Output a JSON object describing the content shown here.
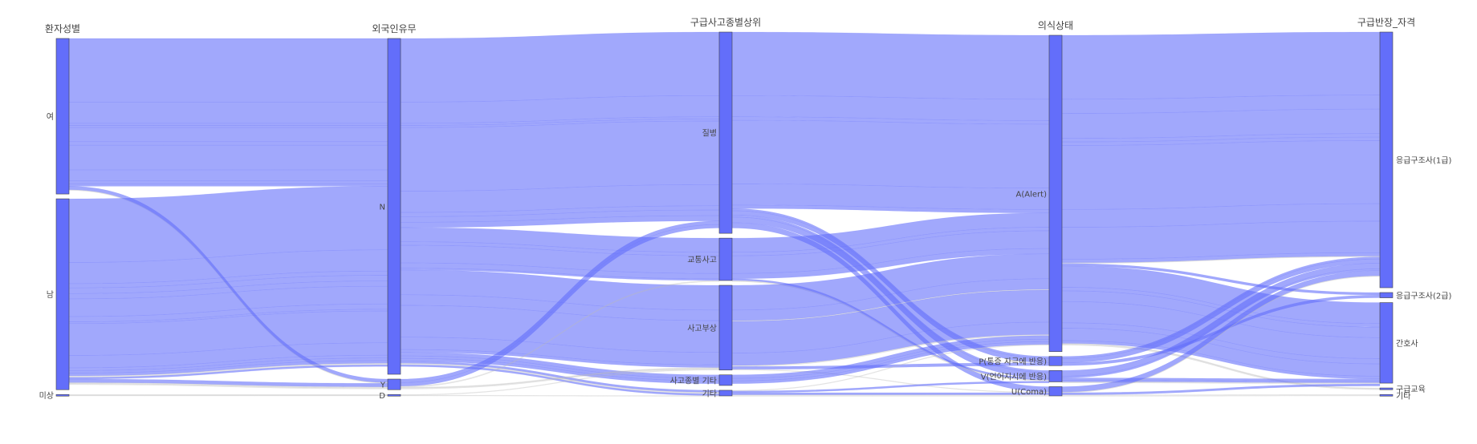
{
  "chart_data": {
    "type": "parallel_categories",
    "bar_color": "#636efa",
    "ribbon_color": "#636efa",
    "ribbon_minor_color": "#bbbbbb",
    "dimensions": [
      {
        "title": "환자성별",
        "categories": [
          {
            "label": "여",
            "count": 44
          },
          {
            "label": "남",
            "count": 54
          },
          {
            "label": "미상",
            "count": 0.4
          }
        ]
      },
      {
        "title": "외국인유무",
        "categories": [
          {
            "label": "N",
            "count": 95
          },
          {
            "label": "Y",
            "count": 3
          },
          {
            "label": "D",
            "count": 0.4
          }
        ]
      },
      {
        "title": "구급사고종별상위",
        "categories": [
          {
            "label": "질병",
            "count": 57
          },
          {
            "label": "교통사고",
            "count": 12
          },
          {
            "label": "사고부상",
            "count": 24
          },
          {
            "label": "사고종별 기타",
            "count": 3
          },
          {
            "label": "기타",
            "count": 1.6
          }
        ]
      },
      {
        "title": "의식상태",
        "categories": [
          {
            "label": "A(Alert)",
            "count": 89
          },
          {
            "label": "P(통증 자극에 반응)",
            "count": 2.6
          },
          {
            "label": "V(언어지시에 반응)",
            "count": 3.2
          },
          {
            "label": "U(Coma)",
            "count": 2.6
          }
        ]
      },
      {
        "title": "구급반장_자격",
        "categories": [
          {
            "label": "응급구조사(1급)",
            "count": 73
          },
          {
            "label": "응급구조사(2급)",
            "count": 1.5
          },
          {
            "label": "간호사",
            "count": 23
          },
          {
            "label": "구급교육",
            "count": 0.5
          },
          {
            "label": "기타",
            "count": 0.4
          }
        ]
      }
    ],
    "flows": [
      {
        "path": [
          "여",
          "N",
          "질병",
          "A(Alert)",
          "응급구조사(1급)"
        ],
        "count": 18
      },
      {
        "path": [
          "여",
          "N",
          "질병",
          "A(Alert)",
          "간호사"
        ],
        "count": 6
      },
      {
        "path": [
          "여",
          "N",
          "질병",
          "P(통증 자극에 반응)",
          "응급구조사(1급)"
        ],
        "count": 0.6
      },
      {
        "path": [
          "여",
          "N",
          "질병",
          "V(언어지시에 반응)",
          "간호사"
        ],
        "count": 0.6
      },
      {
        "path": [
          "여",
          "N",
          "교통사고",
          "A(Alert)",
          "응급구조사(1급)"
        ],
        "count": 4
      },
      {
        "path": [
          "여",
          "N",
          "교통사고",
          "A(Alert)",
          "간호사"
        ],
        "count": 1
      },
      {
        "path": [
          "여",
          "N",
          "사고부상",
          "A(Alert)",
          "응급구조사(1급)"
        ],
        "count": 7
      },
      {
        "path": [
          "여",
          "N",
          "사고부상",
          "A(Alert)",
          "간호사"
        ],
        "count": 3
      },
      {
        "path": [
          "여",
          "N",
          "사고종별 기타",
          "A(Alert)",
          "응급구조사(1급)"
        ],
        "count": 1
      },
      {
        "path": [
          "여",
          "N",
          "기타",
          "U(Coma)",
          "간호사"
        ],
        "count": 0.6
      },
      {
        "path": [
          "여",
          "Y",
          "질병",
          "A(Alert)",
          "응급구조사(1급)"
        ],
        "count": 1
      },
      {
        "path": [
          "여",
          "Y",
          "사고부상",
          "A(Alert)",
          "구급교육"
        ],
        "count": 0.2
      },
      {
        "path": [
          "남",
          "N",
          "질병",
          "A(Alert)",
          "응급구조사(1급)"
        ],
        "count": 18
      },
      {
        "path": [
          "남",
          "N",
          "질병",
          "A(Alert)",
          "간호사"
        ],
        "count": 6
      },
      {
        "path": [
          "남",
          "N",
          "질병",
          "P(통증 자극에 반응)",
          "응급구조사(1급)"
        ],
        "count": 1.2
      },
      {
        "path": [
          "남",
          "N",
          "질병",
          "V(언어지시에 반응)",
          "응급구조사(1급)"
        ],
        "count": 1.6
      },
      {
        "path": [
          "남",
          "N",
          "질병",
          "U(Coma)",
          "응급구조사(1급)"
        ],
        "count": 1.5
      },
      {
        "path": [
          "남",
          "N",
          "교통사고",
          "A(Alert)",
          "응급구조사(1급)"
        ],
        "count": 5
      },
      {
        "path": [
          "남",
          "N",
          "교통사고",
          "A(Alert)",
          "간호사"
        ],
        "count": 1.5
      },
      {
        "path": [
          "남",
          "N",
          "교통사고",
          "V(언어지시에 반응)",
          "간호사"
        ],
        "count": 0.5
      },
      {
        "path": [
          "남",
          "N",
          "사고부상",
          "A(Alert)",
          "응급구조사(1급)"
        ],
        "count": 9
      },
      {
        "path": [
          "남",
          "N",
          "사고부상",
          "A(Alert)",
          "간호사"
        ],
        "count": 3.5
      },
      {
        "path": [
          "남",
          "N",
          "사고부상",
          "P(통증 자극에 반응)",
          "응급구조사(2급)"
        ],
        "count": 0.8
      },
      {
        "path": [
          "남",
          "N",
          "사고종별 기타",
          "A(Alert)",
          "응급구조사(2급)"
        ],
        "count": 0.7
      },
      {
        "path": [
          "남",
          "N",
          "사고종별 기타",
          "A(Alert)",
          "간호사"
        ],
        "count": 0.8
      },
      {
        "path": [
          "남",
          "N",
          "기타",
          "U(Coma)",
          "기타"
        ],
        "count": 0.4
      },
      {
        "path": [
          "남",
          "N",
          "기타",
          "V(언어지시에 반응)",
          "응급구조사(1급)"
        ],
        "count": 0.5
      },
      {
        "path": [
          "남",
          "Y",
          "질병",
          "A(Alert)",
          "응급구조사(1급)"
        ],
        "count": 1
      },
      {
        "path": [
          "남",
          "Y",
          "교통사고",
          "V(언어지시에 반응)",
          "간호사"
        ],
        "count": 0.3
      },
      {
        "path": [
          "남",
          "Y",
          "사고부상",
          "A(Alert)",
          "구급교육"
        ],
        "count": 0.3
      },
      {
        "path": [
          "미상",
          "D",
          "기타",
          "A(Alert)",
          "응급구조사(1급)"
        ],
        "count": 0.2
      },
      {
        "path": [
          "미상",
          "D",
          "사고부상",
          "U(Coma)",
          "응급구조사(1급)"
        ],
        "count": 0.2
      }
    ]
  }
}
